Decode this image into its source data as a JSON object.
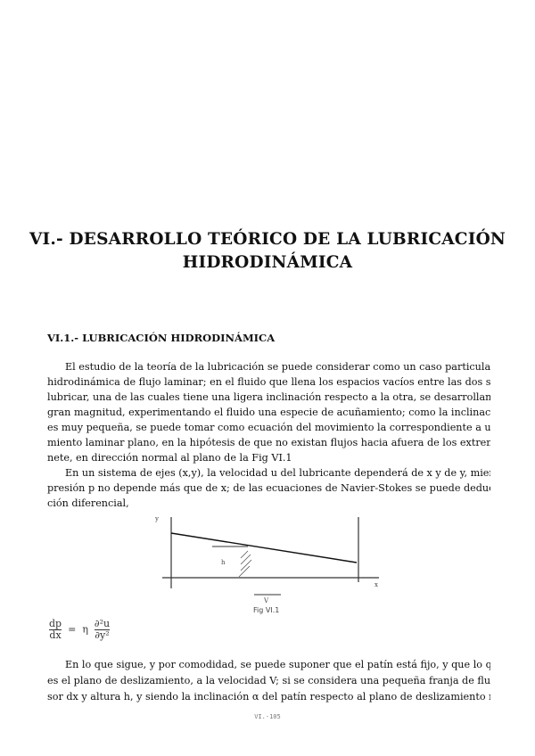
{
  "title": {
    "line1": "VI.- DESARROLLO TEÓRICO DE LA LUBRICACIÓN",
    "line2": "HIDRODINÁMICA"
  },
  "section": "VI.1.- LUBRICACIÓN HIDRODINÁMICA",
  "paragraphs": [
    {
      "lines": [
        "El estudio de la teoría de la lubricación se puede considerar como un caso particular de la teoría",
        "hidrodinámica de flujo laminar; en el fluido que llena los espacios vacíos entre las dos superficies a",
        "lubricar, una de las cuales tiene una ligera inclinación respecto a la otra, se desarrollan fuerzas de",
        "gran magnitud, experimentando el fluido una especie de acuñamiento; como la inclinación del patín",
        "es muy pequeña, se puede tomar como ecuación del movimiento la correspondiente a un movi-",
        "miento laminar plano, en la hipótesis de que no existan flujos hacia afuera de los extremos del coji-",
        "nete, en dirección normal al plano de la Fig VI.1"
      ]
    },
    {
      "lines": [
        "En un sistema de ejes (x,y), la velocidad u del lubricante dependerá de x y de y, mientras que la",
        "presión p no depende más que de x; de las ecuaciones de Navier-Stokes se puede deducir la ecua-",
        "ción diferencial,"
      ]
    },
    {
      "lines": [
        "En lo que sigue, y por comodidad, se puede suponer que el patín está fijo, y que lo que se mueve",
        "es el plano de deslizamiento, a la velocidad V; si se considera una pequeña franja de fluido de espe-",
        "sor dx y altura h, y siendo la inclinación α del patín respecto al plano de deslizamiento muy peque-"
      ]
    }
  ],
  "figure": {
    "caption": "Fig VI.1",
    "labels": {
      "y": "y",
      "x": "x",
      "h": "h",
      "v": "V"
    }
  },
  "equation": {
    "lhs_num": "dp",
    "lhs_den": "dx",
    "eq": "=",
    "eta": "η",
    "rhs_num": "∂²u",
    "rhs_den": "∂y²"
  },
  "page_number": "VI.-105"
}
